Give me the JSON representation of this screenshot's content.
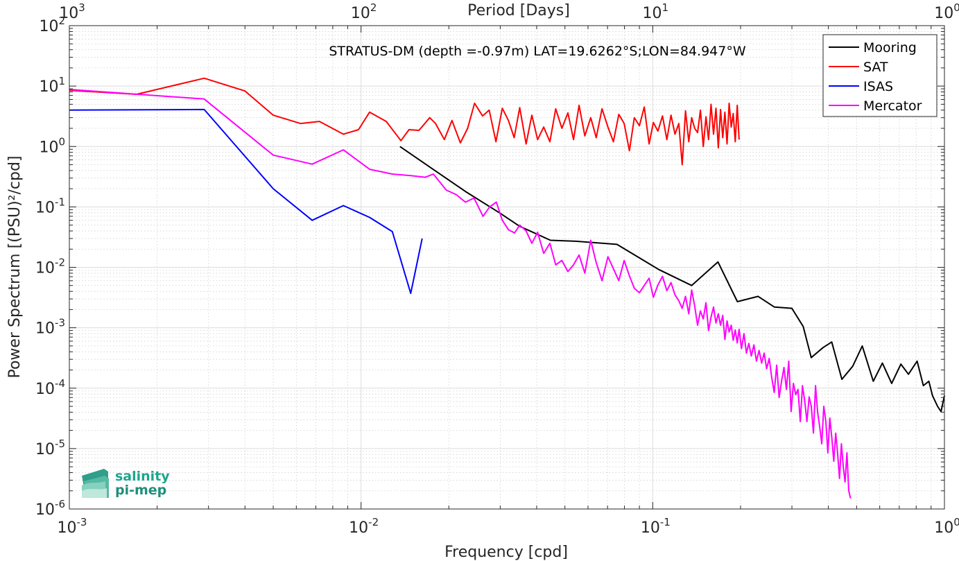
{
  "chart_data": {
    "type": "line",
    "title": "STRATUS-DM (depth =-0.97m) LAT=19.6262°S;LON=84.947°W",
    "xlabel": "Frequency [cpd]",
    "ylabel": "Power Spectrum [(PSU)²/cpd]",
    "top_xlabel": "Period [Days]",
    "xscale": "log",
    "yscale": "log",
    "xlim": [
      0.001,
      1
    ],
    "ylim": [
      1e-06,
      100
    ],
    "x_ticks": [
      {
        "mant": "10",
        "exp": "-3"
      },
      {
        "mant": "10",
        "exp": "-2"
      },
      {
        "mant": "10",
        "exp": "-1"
      },
      {
        "mant": "10",
        "exp": "0"
      }
    ],
    "top_ticks": [
      {
        "mant": "10",
        "exp": "3"
      },
      {
        "mant": "10",
        "exp": "2"
      },
      {
        "mant": "10",
        "exp": "1"
      },
      {
        "mant": "10",
        "exp": "0"
      }
    ],
    "y_ticks": [
      {
        "mant": "10",
        "exp": "-6"
      },
      {
        "mant": "10",
        "exp": "-5"
      },
      {
        "mant": "10",
        "exp": "-4"
      },
      {
        "mant": "10",
        "exp": "-3"
      },
      {
        "mant": "10",
        "exp": "-2"
      },
      {
        "mant": "10",
        "exp": "-1"
      },
      {
        "mant": "10",
        "exp": "0"
      },
      {
        "mant": "10",
        "exp": "1"
      },
      {
        "mant": "10",
        "exp": "2"
      }
    ],
    "grid": true,
    "legend_position": "top-right",
    "series": [
      {
        "name": "Mooring",
        "color": "#000000",
        "x": [
          0.0136,
          0.0174,
          0.0228,
          0.0298,
          0.0349,
          0.0446,
          0.0545,
          0.0754,
          0.1049,
          0.1359,
          0.1673,
          0.1951,
          0.2297,
          0.2613,
          0.3,
          0.328,
          0.3495,
          0.3836,
          0.4108,
          0.445,
          0.4848,
          0.5229,
          0.5702,
          0.6127,
          0.6592,
          0.7091,
          0.7528,
          0.8058,
          0.8466,
          0.8842,
          0.91,
          0.9473,
          0.9736,
          1.0
        ],
        "y": [
          1.0,
          0.44,
          0.18,
          0.08,
          0.048,
          0.028,
          0.027,
          0.024,
          0.0092,
          0.005,
          0.0123,
          0.0027,
          0.0033,
          0.0022,
          0.0021,
          0.00105,
          0.00032,
          0.00047,
          0.00058,
          0.00014,
          0.00023,
          0.0005,
          0.00013,
          0.00026,
          0.00012,
          0.00025,
          0.00017,
          0.00028,
          0.00011,
          0.00013,
          7.5e-05,
          5e-05,
          4.1e-05,
          7.5e-05
        ]
      },
      {
        "name": "SAT",
        "color": "#ff0000",
        "x": [
          0.001,
          0.0017,
          0.0029,
          0.004,
          0.005,
          0.0062,
          0.0072,
          0.0087,
          0.0098,
          0.0107,
          0.0122,
          0.0137,
          0.0146,
          0.0158,
          0.0172,
          0.018,
          0.0193,
          0.0205,
          0.0219,
          0.0232,
          0.0245,
          0.0261,
          0.0275,
          0.029,
          0.0305,
          0.032,
          0.0335,
          0.035,
          0.0368,
          0.0385,
          0.0403,
          0.0423,
          0.0444,
          0.0465,
          0.0488,
          0.0512,
          0.0535,
          0.0559,
          0.0585,
          0.0613,
          0.064,
          0.067,
          0.0702,
          0.0733,
          0.0765,
          0.0798,
          0.0832,
          0.0865,
          0.09,
          0.0935,
          0.0972,
          0.1005,
          0.1042,
          0.108,
          0.1118,
          0.1155,
          0.1192,
          0.1228,
          0.1262,
          0.1295,
          0.1329,
          0.136,
          0.1392,
          0.1425,
          0.1457,
          0.149,
          0.1522,
          0.1553,
          0.1584,
          0.1616,
          0.1647,
          0.1678,
          0.1708,
          0.1738,
          0.1768,
          0.1798,
          0.1828,
          0.1858,
          0.1888,
          0.1918,
          0.1948,
          0.1978
        ],
        "y": [
          8.5,
          7.3,
          13.5,
          8.3,
          3.3,
          2.4,
          2.6,
          1.6,
          1.9,
          3.7,
          2.6,
          1.25,
          1.9,
          1.85,
          3.0,
          2.4,
          1.3,
          2.7,
          1.15,
          2.0,
          5.2,
          3.2,
          4.0,
          1.2,
          4.3,
          2.7,
          1.4,
          4.4,
          1.1,
          3.3,
          1.3,
          2.1,
          1.2,
          4.2,
          2.0,
          3.6,
          1.3,
          4.8,
          1.5,
          3.0,
          1.4,
          4.2,
          2.1,
          1.2,
          3.4,
          2.4,
          0.85,
          3.0,
          2.2,
          4.5,
          1.1,
          2.5,
          1.8,
          3.2,
          1.3,
          3.3,
          1.6,
          2.4,
          0.5,
          3.9,
          1.2,
          3.0,
          2.0,
          1.7,
          4.0,
          1.0,
          3.1,
          1.3,
          5.0,
          1.6,
          4.3,
          0.95,
          4.1,
          1.4,
          3.7,
          1.1,
          5.2,
          2.1,
          3.5,
          1.2,
          4.8,
          1.3
        ]
      },
      {
        "name": "ISAS",
        "color": "#0000ff",
        "x": [
          0.001,
          0.0029,
          0.005,
          0.0068,
          0.0087,
          0.0107,
          0.0128,
          0.0148,
          0.0162
        ],
        "y": [
          4.0,
          4.1,
          0.2,
          0.06,
          0.105,
          0.067,
          0.039,
          0.0037,
          0.03
        ]
      },
      {
        "name": "Mercator",
        "color": "#ff00ff",
        "x": [
          0.001,
          0.0029,
          0.005,
          0.0068,
          0.0087,
          0.0107,
          0.0128,
          0.0148,
          0.0166,
          0.0177,
          0.0196,
          0.0212,
          0.0228,
          0.0244,
          0.0262,
          0.0276,
          0.0291,
          0.0305,
          0.032,
          0.0336,
          0.035,
          0.0368,
          0.0385,
          0.0403,
          0.0423,
          0.0444,
          0.0465,
          0.0488,
          0.0512,
          0.0535,
          0.0559,
          0.0585,
          0.0613,
          0.064,
          0.067,
          0.0702,
          0.0733,
          0.0765,
          0.0798,
          0.0832,
          0.0865,
          0.09,
          0.0935,
          0.0972,
          0.1005,
          0.1042,
          0.108,
          0.1118,
          0.1155,
          0.1192,
          0.1228,
          0.1262,
          0.1295,
          0.1329,
          0.136,
          0.1392,
          0.1425,
          0.1457,
          0.149,
          0.1522,
          0.1553,
          0.1584,
          0.1616,
          0.1647,
          0.1678,
          0.1708,
          0.1738,
          0.1768,
          0.1798,
          0.1828,
          0.1858,
          0.1888,
          0.1918,
          0.1948,
          0.1978,
          0.2015,
          0.2055,
          0.2095,
          0.2135,
          0.2178,
          0.2222,
          0.2268,
          0.2315,
          0.2362,
          0.241,
          0.2458,
          0.2508,
          0.2558,
          0.2608,
          0.266,
          0.2712,
          0.2765,
          0.2818,
          0.2872,
          0.2926,
          0.2981,
          0.3036,
          0.3092,
          0.3148,
          0.3205,
          0.3262,
          0.332,
          0.3378,
          0.3437,
          0.3496,
          0.3555,
          0.3615,
          0.3675,
          0.3736,
          0.3797,
          0.3859,
          0.3921,
          0.3984,
          0.4047,
          0.411,
          0.4174,
          0.4238,
          0.4303,
          0.4368,
          0.4433,
          0.4499,
          0.4565,
          0.4632,
          0.4699,
          0.4766
        ],
        "y": [
          8.8,
          6.1,
          0.72,
          0.51,
          0.88,
          0.42,
          0.35,
          0.33,
          0.31,
          0.35,
          0.19,
          0.16,
          0.12,
          0.14,
          0.07,
          0.1,
          0.12,
          0.06,
          0.042,
          0.037,
          0.05,
          0.04,
          0.025,
          0.038,
          0.017,
          0.025,
          0.011,
          0.013,
          0.0085,
          0.011,
          0.016,
          0.008,
          0.028,
          0.012,
          0.006,
          0.015,
          0.0095,
          0.006,
          0.013,
          0.0072,
          0.0045,
          0.0038,
          0.005,
          0.0066,
          0.0032,
          0.0051,
          0.0071,
          0.0041,
          0.0056,
          0.0035,
          0.0028,
          0.0021,
          0.0033,
          0.0017,
          0.0042,
          0.0023,
          0.0011,
          0.0019,
          0.0014,
          0.0026,
          0.0009,
          0.0015,
          0.0022,
          0.0012,
          0.0017,
          0.0011,
          0.0016,
          0.00064,
          0.0013,
          0.00085,
          0.0011,
          0.00062,
          0.00092,
          0.00056,
          0.00094,
          0.00045,
          0.0008,
          0.00038,
          0.00055,
          0.00034,
          0.00052,
          0.00028,
          0.00042,
          0.00026,
          0.00038,
          0.00021,
          0.00031,
          0.00015,
          8.5e-05,
          0.00024,
          7e-05,
          0.00013,
          0.00022,
          9.5e-05,
          0.00028,
          4.1e-05,
          0.00012,
          7.8e-05,
          9.5e-05,
          2.8e-05,
          0.00011,
          6e-05,
          2.8e-05,
          7.2e-05,
          5e-05,
          1.8e-05,
          0.00011,
          4e-05,
          2.3e-05,
          1.2e-05,
          5e-05,
          2.8e-05,
          8.5e-06,
          3.2e-05,
          1.5e-05,
          6.2e-06,
          1.8e-05,
          8.5e-06,
          3.2e-06,
          1.2e-05,
          5e-06,
          2.8e-06,
          8.5e-06,
          2e-06,
          1.5e-06
        ]
      }
    ]
  },
  "logo": {
    "line1": "salinity",
    "line2": "pi-mep"
  }
}
